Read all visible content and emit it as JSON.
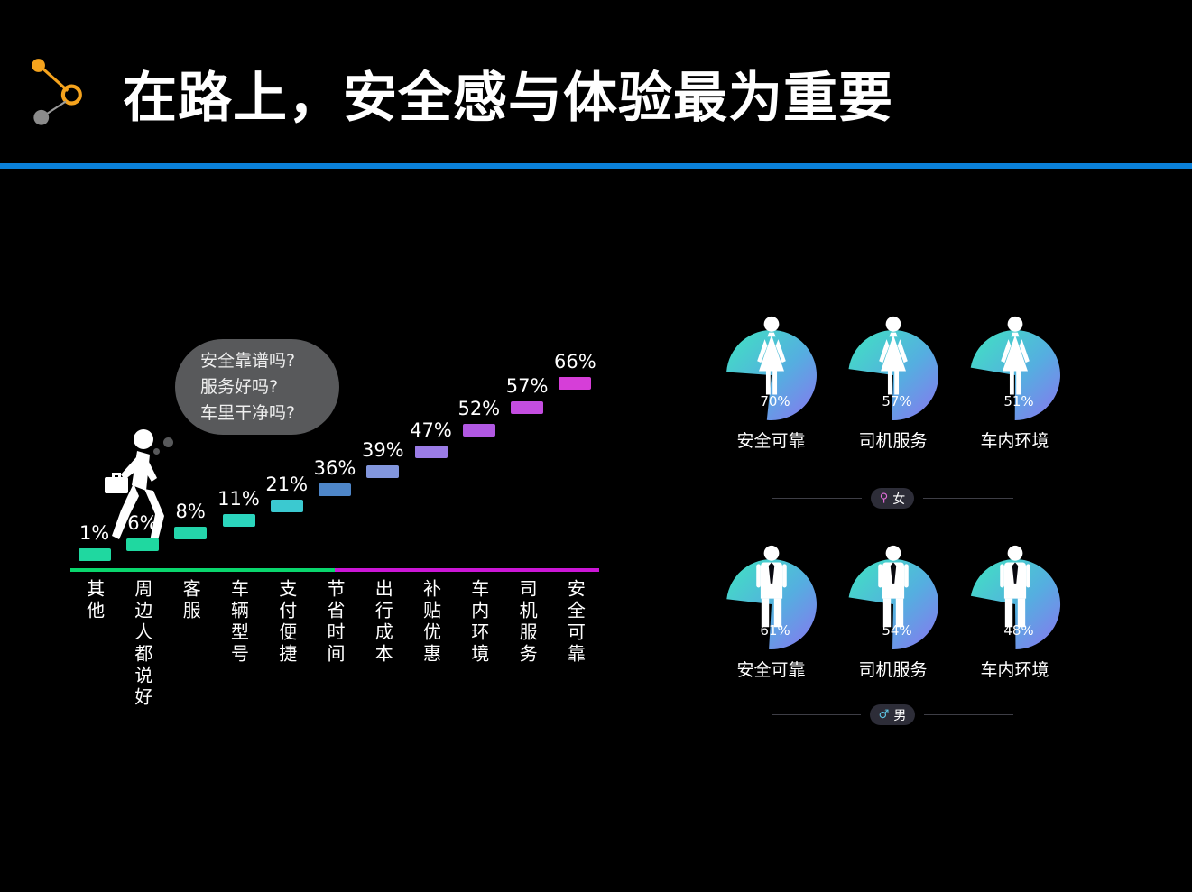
{
  "header": {
    "title": "在路上，安全感与体验最为重要"
  },
  "colors": {
    "accent_line": "#0a80d8",
    "logo_orange": "#f5a31d",
    "bubble_bg": "#58595b",
    "baseline_left": "#09d66d",
    "baseline_right": "#cb16d6",
    "pie_gradient": [
      "#3fe4c1",
      "#55aee0",
      "#8a74f0"
    ],
    "female_symbol_color": "#e06ed8",
    "male_symbol_color": "#5fc9e8"
  },
  "thought_bubble": {
    "lines": [
      "安全靠谱吗?",
      "服务好吗?",
      "车里干净吗?"
    ]
  },
  "chart_data": [
    {
      "type": "bar",
      "title": "",
      "categories": [
        "其他",
        "周边人都说好",
        "客服",
        "车辆型号",
        "支付便捷",
        "节省时间",
        "出行成本",
        "补贴优惠",
        "车内环境",
        "司机服务",
        "安全可靠"
      ],
      "values": [
        1,
        6,
        8,
        11,
        21,
        36,
        39,
        47,
        52,
        57,
        66
      ],
      "labels": [
        "1%",
        "6%",
        "8%",
        "11%",
        "21%",
        "36%",
        "39%",
        "47%",
        "52%",
        "57%",
        "66%"
      ],
      "bar_colors": [
        "#1fd8a0",
        "#1fd8a0",
        "#24d5ab",
        "#2bd5bd",
        "#3bc9d0",
        "#4e86c8",
        "#8296dd",
        "#9b7ce6",
        "#b158e2",
        "#c44de0",
        "#d63ed8"
      ],
      "ylim": [
        0,
        70
      ],
      "xlabel": "",
      "ylabel": ""
    },
    {
      "type": "pie",
      "group_label": "女",
      "group_symbol": "♀",
      "gender": "female",
      "items": [
        {
          "label": "安全可靠",
          "value": 70,
          "value_label": "70%"
        },
        {
          "label": "司机服务",
          "value": 57,
          "value_label": "57%"
        },
        {
          "label": "车内环境",
          "value": 51,
          "value_label": "51%"
        }
      ]
    },
    {
      "type": "pie",
      "group_label": "男",
      "group_symbol": "♂",
      "gender": "male",
      "items": [
        {
          "label": "安全可靠",
          "value": 61,
          "value_label": "61%"
        },
        {
          "label": "司机服务",
          "value": 54,
          "value_label": "54%"
        },
        {
          "label": "车内环境",
          "value": 48,
          "value_label": "48%"
        }
      ]
    }
  ]
}
